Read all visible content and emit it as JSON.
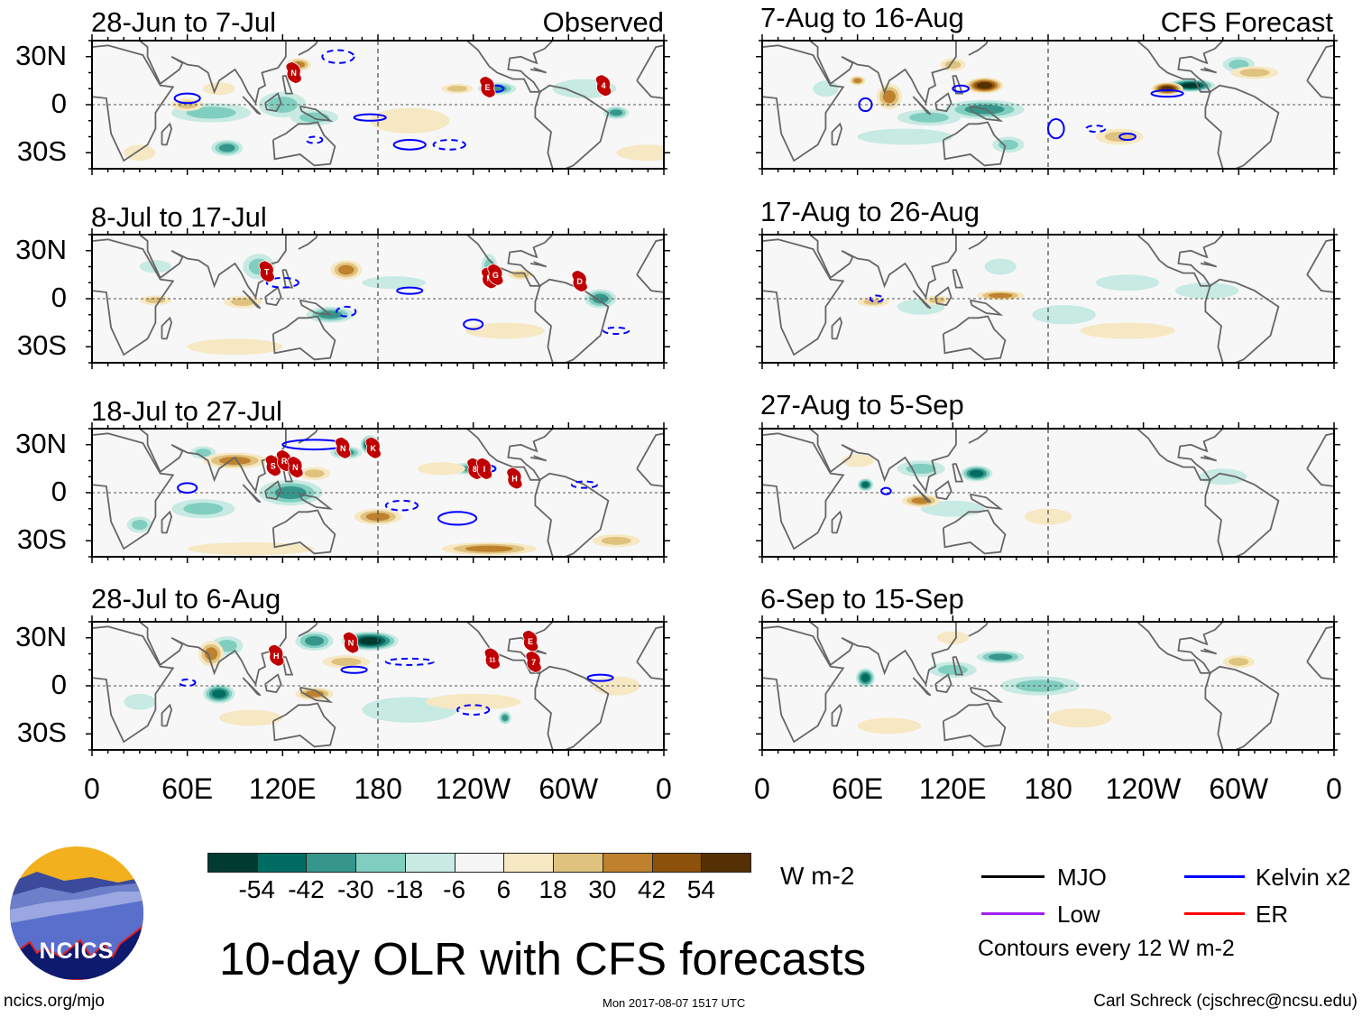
{
  "header": {
    "left_group": "Observed",
    "right_group": "CFS Forecast"
  },
  "footer": {
    "title": "10-day OLR with CFS forecasts",
    "url": "ncics.org/mjo",
    "timestamp": "Mon 2017-08-07 1517 UTC",
    "author": "Carl Schreck (cjschrec@ncsu.edu)",
    "logo_text": "NCICS"
  },
  "legend": {
    "items": [
      {
        "label": "MJO",
        "color": "#000000"
      },
      {
        "label": "Kelvin x2",
        "color": "#0000ff"
      },
      {
        "label": "Low",
        "color": "#a020f0"
      },
      {
        "label": "ER",
        "color": "#ff0000"
      }
    ],
    "contour_note": "Contours every 12 W m-2"
  },
  "chart_data": {
    "type": "map",
    "variable": "OLR anomaly",
    "units": "W m-2",
    "colorbar": {
      "labels": [
        "-54",
        "-42",
        "-30",
        "-18",
        "-6",
        "6",
        "18",
        "30",
        "42",
        "54"
      ],
      "boundaries": [
        -54,
        -42,
        -30,
        -18,
        -6,
        6,
        18,
        30,
        42,
        54
      ],
      "colors": [
        "#013b30",
        "#016c62",
        "#36968c",
        "#80cec0",
        "#c7eae3",
        "#f5f5f5",
        "#f6e8c3",
        "#dfc27d",
        "#bf812d",
        "#8c510a",
        "#553005"
      ]
    },
    "lon_ticks": [
      {
        "lon": 0,
        "label": "0"
      },
      {
        "lon": 60,
        "label": "60E"
      },
      {
        "lon": 120,
        "label": "120E"
      },
      {
        "lon": 180,
        "label": "180"
      },
      {
        "lon": 240,
        "label": "120W"
      },
      {
        "lon": 300,
        "label": "60W"
      },
      {
        "lon": 360,
        "label": "0"
      }
    ],
    "lat_ticks": [
      {
        "lat": 30,
        "label": "30N"
      },
      {
        "lat": 0,
        "label": "0"
      },
      {
        "lat": -30,
        "label": "30S"
      }
    ],
    "lat_range": [
      -40,
      40
    ],
    "panels": [
      {
        "title": "28-Jun to 7-Jul",
        "group": "observed",
        "anomalies": [
          [
            85,
            -27,
            10,
            5,
            -40
          ],
          [
            75,
            -5,
            25,
            6,
            -20
          ],
          [
            120,
            0,
            15,
            8,
            -25
          ],
          [
            140,
            -8,
            15,
            5,
            -20
          ],
          [
            255,
            10,
            12,
            4,
            -35
          ],
          [
            310,
            10,
            20,
            6,
            -15
          ],
          [
            330,
            -5,
            8,
            4,
            -30
          ],
          [
            130,
            25,
            8,
            4,
            30
          ],
          [
            60,
            0,
            10,
            4,
            20
          ],
          [
            80,
            10,
            10,
            4,
            15
          ],
          [
            200,
            -10,
            25,
            8,
            12
          ],
          [
            350,
            -30,
            20,
            5,
            15
          ],
          [
            30,
            -30,
            10,
            5,
            15
          ],
          [
            230,
            10,
            10,
            3,
            20
          ]
        ],
        "kelvin": [
          [
            60,
            4,
            8,
            3,
            "solid"
          ],
          [
            155,
            30,
            10,
            4,
            "dashed"
          ],
          [
            175,
            -8,
            10,
            2,
            "solid"
          ],
          [
            200,
            -25,
            10,
            3,
            "solid"
          ],
          [
            255,
            10,
            4,
            2,
            "solid"
          ],
          [
            225,
            -25,
            10,
            3,
            "dashed"
          ],
          [
            140,
            -22,
            5,
            2,
            "dashed"
          ]
        ],
        "storms": [
          {
            "lon": 127,
            "lat": 20,
            "label": "N"
          },
          {
            "lon": 249,
            "lat": 11,
            "label": "E"
          },
          {
            "lon": 322,
            "lat": 12,
            "label": "4"
          }
        ]
      },
      {
        "title": "8-Jul to 17-Jul",
        "group": "observed",
        "anomalies": [
          [
            105,
            20,
            10,
            8,
            -25
          ],
          [
            150,
            -10,
            15,
            5,
            -30
          ],
          [
            40,
            20,
            10,
            4,
            -15
          ],
          [
            320,
            0,
            10,
            6,
            -35
          ],
          [
            190,
            10,
            20,
            4,
            -10
          ],
          [
            250,
            20,
            5,
            8,
            -20
          ],
          [
            160,
            18,
            10,
            6,
            35
          ],
          [
            95,
            -2,
            12,
            4,
            20
          ],
          [
            40,
            -1,
            10,
            3,
            18
          ],
          [
            260,
            -20,
            25,
            5,
            12
          ],
          [
            90,
            -30,
            30,
            5,
            10
          ],
          [
            270,
            15,
            8,
            3,
            20
          ]
        ],
        "kelvin": [
          [
            200,
            5,
            8,
            2,
            "solid"
          ],
          [
            240,
            -16,
            6,
            3,
            "solid"
          ],
          [
            160,
            -8,
            6,
            3,
            "dashed"
          ],
          [
            330,
            -20,
            8,
            2,
            "dashed"
          ],
          [
            120,
            10,
            10,
            3,
            "dashed"
          ]
        ],
        "storms": [
          {
            "lon": 110,
            "lat": 17,
            "label": "T"
          },
          {
            "lon": 250,
            "lat": 13,
            "label": "F"
          },
          {
            "lon": 254,
            "lat": 15,
            "label": "G"
          },
          {
            "lon": 307,
            "lat": 11,
            "label": "D"
          }
        ]
      },
      {
        "title": "18-Jul to 27-Jul",
        "group": "observed",
        "anomalies": [
          [
            175,
            30,
            6,
            6,
            -55
          ],
          [
            160,
            25,
            10,
            4,
            -35
          ],
          [
            125,
            0,
            20,
            8,
            -35
          ],
          [
            70,
            -10,
            20,
            6,
            -20
          ],
          [
            240,
            15,
            15,
            4,
            -30
          ],
          [
            70,
            25,
            8,
            4,
            -25
          ],
          [
            30,
            -20,
            8,
            5,
            -20
          ],
          [
            90,
            20,
            20,
            5,
            30
          ],
          [
            140,
            12,
            10,
            4,
            25
          ],
          [
            180,
            -15,
            15,
            5,
            30
          ],
          [
            250,
            -35,
            30,
            4,
            30
          ],
          [
            330,
            -30,
            15,
            4,
            25
          ],
          [
            100,
            -35,
            40,
            4,
            15
          ],
          [
            220,
            15,
            15,
            4,
            15
          ]
        ],
        "kelvin": [
          [
            230,
            -16,
            12,
            4,
            "solid"
          ],
          [
            60,
            3,
            6,
            3,
            "solid"
          ],
          [
            140,
            30,
            20,
            3,
            "solid"
          ],
          [
            250,
            15,
            4,
            2,
            "solid"
          ],
          [
            195,
            -8,
            10,
            3,
            "dashed"
          ],
          [
            310,
            5,
            8,
            2,
            "dashed"
          ]
        ],
        "storms": [
          {
            "lon": 114,
            "lat": 17,
            "label": "S"
          },
          {
            "lon": 121,
            "lat": 20,
            "label": "R"
          },
          {
            "lon": 128,
            "lat": 16,
            "label": "N"
          },
          {
            "lon": 158,
            "lat": 28,
            "label": "N"
          },
          {
            "lon": 177,
            "lat": 28,
            "label": "K"
          },
          {
            "lon": 241,
            "lat": 15,
            "label": "8"
          },
          {
            "lon": 247,
            "lat": 15,
            "label": "I"
          },
          {
            "lon": 266,
            "lat": 9,
            "label": "H"
          }
        ]
      },
      {
        "title": "28-Jul to 6-Aug",
        "group": "observed",
        "anomalies": [
          [
            175,
            28,
            18,
            6,
            -55
          ],
          [
            140,
            28,
            12,
            6,
            -35
          ],
          [
            80,
            -5,
            10,
            6,
            -45
          ],
          [
            260,
            -20,
            4,
            4,
            -40
          ],
          [
            200,
            -15,
            30,
            8,
            -12
          ],
          [
            85,
            25,
            10,
            6,
            -20
          ],
          [
            30,
            -10,
            10,
            5,
            -15
          ],
          [
            75,
            20,
            8,
            8,
            40
          ],
          [
            140,
            -5,
            12,
            4,
            30
          ],
          [
            160,
            15,
            15,
            4,
            25
          ],
          [
            240,
            -10,
            30,
            5,
            12
          ],
          [
            100,
            -20,
            20,
            5,
            15
          ],
          [
            330,
            0,
            15,
            6,
            12
          ]
        ],
        "kelvin": [
          [
            165,
            10,
            8,
            2,
            "solid"
          ],
          [
            200,
            15,
            15,
            2,
            "dashed"
          ],
          [
            240,
            -15,
            10,
            3,
            "dashed"
          ],
          [
            320,
            5,
            8,
            2,
            "solid"
          ],
          [
            60,
            2,
            5,
            2,
            "dashed"
          ]
        ],
        "storms": [
          {
            "lon": 116,
            "lat": 19,
            "label": "H"
          },
          {
            "lon": 163,
            "lat": 27,
            "label": "N"
          },
          {
            "lon": 252,
            "lat": 17,
            "label": "11"
          },
          {
            "lon": 276,
            "lat": 28,
            "label": "E"
          },
          {
            "lon": 278,
            "lat": 15,
            "label": "7"
          }
        ]
      },
      {
        "title": "7-Aug to 16-Aug",
        "group": "forecast",
        "anomalies": [
          [
            270,
            12,
            15,
            4,
            -55
          ],
          [
            140,
            -3,
            25,
            6,
            -30
          ],
          [
            105,
            -8,
            20,
            5,
            -20
          ],
          [
            90,
            -20,
            30,
            5,
            -15
          ],
          [
            40,
            10,
            8,
            5,
            -15
          ],
          [
            155,
            -25,
            10,
            5,
            -20
          ],
          [
            300,
            25,
            10,
            5,
            -20
          ],
          [
            140,
            12,
            12,
            5,
            55
          ],
          [
            255,
            10,
            10,
            4,
            55
          ],
          [
            80,
            5,
            8,
            8,
            40
          ],
          [
            60,
            15,
            5,
            3,
            40
          ],
          [
            225,
            -20,
            15,
            5,
            25
          ],
          [
            120,
            25,
            8,
            4,
            25
          ],
          [
            310,
            20,
            15,
            4,
            20
          ]
        ],
        "kelvin": [
          [
            65,
            0,
            4,
            4,
            "solid"
          ],
          [
            185,
            -15,
            5,
            6,
            "solid"
          ],
          [
            255,
            7,
            10,
            2,
            "solid"
          ],
          [
            125,
            10,
            5,
            2,
            "solid"
          ],
          [
            210,
            -15,
            6,
            2,
            "dashed"
          ],
          [
            230,
            -20,
            5,
            2,
            "solid"
          ]
        ],
        "storms": []
      },
      {
        "title": "17-Aug to 26-Aug",
        "group": "forecast",
        "anomalies": [
          [
            100,
            -5,
            15,
            5,
            -15
          ],
          [
            230,
            10,
            20,
            5,
            -15
          ],
          [
            280,
            5,
            20,
            5,
            -15
          ],
          [
            190,
            -10,
            20,
            6,
            -12
          ],
          [
            150,
            20,
            10,
            5,
            -12
          ],
          [
            150,
            2,
            15,
            3,
            30
          ],
          [
            70,
            -2,
            10,
            3,
            20
          ],
          [
            110,
            -1,
            8,
            3,
            20
          ],
          [
            230,
            -20,
            30,
            5,
            12
          ]
        ],
        "kelvin": [
          [
            72,
            0,
            4,
            2,
            "dashed"
          ]
        ],
        "storms": []
      },
      {
        "title": "27-Aug to 5-Sep",
        "group": "forecast",
        "anomalies": [
          [
            65,
            5,
            5,
            4,
            -50
          ],
          [
            135,
            12,
            10,
            5,
            -45
          ],
          [
            100,
            15,
            15,
            5,
            -25
          ],
          [
            120,
            -10,
            20,
            5,
            -15
          ],
          [
            290,
            10,
            15,
            5,
            -15
          ],
          [
            100,
            -5,
            12,
            4,
            30
          ],
          [
            60,
            20,
            10,
            4,
            15
          ],
          [
            180,
            -15,
            15,
            5,
            10
          ]
        ],
        "kelvin": [
          [
            78,
            1,
            3,
            2,
            "solid"
          ]
        ],
        "storms": []
      },
      {
        "title": "6-Sep to 15-Sep",
        "group": "forecast",
        "anomalies": [
          [
            65,
            5,
            6,
            6,
            -45
          ],
          [
            150,
            18,
            15,
            4,
            -30
          ],
          [
            175,
            0,
            25,
            6,
            -25
          ],
          [
            120,
            10,
            15,
            5,
            -20
          ],
          [
            120,
            30,
            10,
            4,
            15
          ],
          [
            300,
            15,
            10,
            4,
            20
          ],
          [
            80,
            -25,
            20,
            5,
            12
          ],
          [
            200,
            -20,
            20,
            6,
            10
          ]
        ],
        "kelvin": [],
        "storms": []
      }
    ]
  }
}
